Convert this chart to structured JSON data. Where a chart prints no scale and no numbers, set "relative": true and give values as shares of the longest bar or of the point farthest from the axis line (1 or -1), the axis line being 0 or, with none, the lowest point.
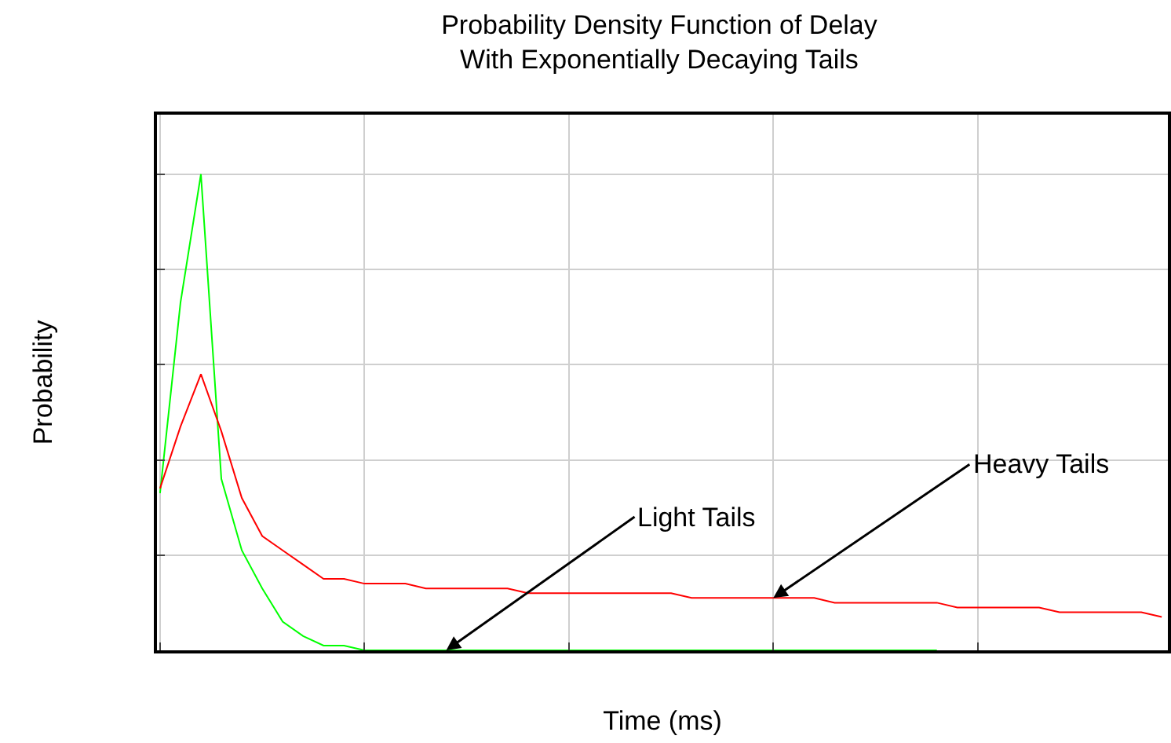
{
  "chart_data": {
    "type": "line",
    "title": "Probability Density Function of Delay\nWith Exponentially Decaying Tails",
    "xlabel": "Time (ms)",
    "ylabel": "Probability",
    "relative": true,
    "annotations": [
      "Light Tails",
      "Heavy Tails"
    ],
    "grid": true,
    "marker": "none",
    "line_style": "solid",
    "categories": [
      null,
      null,
      null,
      null,
      null,
      null,
      null,
      null,
      null,
      null,
      null,
      null,
      null,
      null,
      null,
      null,
      null,
      null,
      null,
      null,
      null,
      null,
      null,
      null,
      null,
      null,
      null,
      null,
      null,
      null,
      null,
      null,
      null,
      null,
      null,
      null,
      null,
      null,
      null,
      null,
      null,
      null,
      null,
      null,
      null,
      null,
      null,
      null,
      null,
      null
    ],
    "series": [
      {
        "color": "#00ff00",
        "values": [
          0.33,
          0.73,
          1.0,
          0.36,
          0.21,
          0.13,
          0.06,
          0.03,
          0.01,
          0.01,
          0,
          0,
          0,
          0,
          0,
          0,
          0,
          0,
          0,
          0,
          0,
          0,
          0,
          0,
          0,
          0,
          0,
          0,
          0,
          0,
          0,
          0,
          0,
          0,
          0,
          0,
          0,
          0,
          0,
          null,
          null,
          null,
          null,
          null,
          null,
          null,
          null,
          null,
          null,
          null
        ]
      },
      {
        "color": "#ff0000",
        "values": [
          0.34,
          0.47,
          0.58,
          0.46,
          0.32,
          0.24,
          0.21,
          0.18,
          0.15,
          0.15,
          0.14,
          0.14,
          0.14,
          0.13,
          0.13,
          0.13,
          0.13,
          0.13,
          0.12,
          0.12,
          0.12,
          0.12,
          0.12,
          0.12,
          0.12,
          0.12,
          0.11,
          0.11,
          0.11,
          0.11,
          0.11,
          0.11,
          0.11,
          0.1,
          0.1,
          0.1,
          0.1,
          0.1,
          0.1,
          0.09,
          0.09,
          0.09,
          0.09,
          0.09,
          0.08,
          0.08,
          0.08,
          0.08,
          0.08,
          0.07
        ]
      }
    ]
  }
}
